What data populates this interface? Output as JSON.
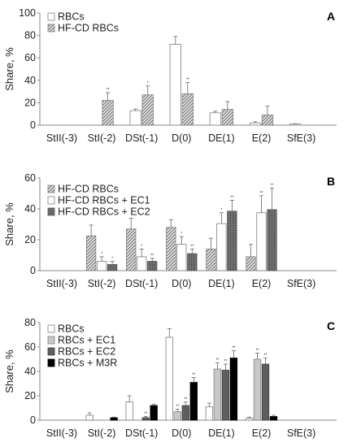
{
  "chart_data": [
    {
      "panel_label": "A",
      "type": "bar",
      "ylabel": "Share, %",
      "ylim": [
        0,
        100
      ],
      "yticks": [
        0,
        20,
        40,
        60,
        80,
        100
      ],
      "categories": [
        "StII(-3)",
        "StI(-2)",
        "DSt(-1)",
        "D(0)",
        "DE(1)",
        "E(2)",
        "SfE(3)"
      ],
      "legend_position": "top-left",
      "series": [
        {
          "name": "RBCs",
          "style": "white",
          "values": [
            0,
            0,
            13,
            72,
            11,
            2,
            1
          ],
          "errors": [
            0,
            0,
            1.5,
            7,
            1.5,
            1,
            0.3
          ],
          "stars": [
            "",
            "",
            "",
            "",
            "",
            "",
            ""
          ]
        },
        {
          "name": "HF-CD RBCs",
          "style": "hatched",
          "values": [
            0,
            22,
            27,
            28,
            14,
            9,
            0
          ],
          "errors": [
            0,
            7,
            8,
            10,
            7,
            8,
            0
          ],
          "stars": [
            "",
            "**",
            "*",
            "**",
            "",
            "",
            ""
          ]
        }
      ]
    },
    {
      "panel_label": "B",
      "type": "bar",
      "ylabel": "Share, %",
      "ylim": [
        0,
        60
      ],
      "yticks": [
        0,
        20,
        40,
        60
      ],
      "categories": [
        "StII(-3)",
        "StI(-2)",
        "DSt(-1)",
        "D(0)",
        "DE(1)",
        "E(2)",
        "SfE(3)"
      ],
      "legend_position": "top-left",
      "series": [
        {
          "name": "HF-CD RBCs",
          "style": "hatched",
          "values": [
            0,
            22.5,
            27,
            28,
            14,
            9,
            0
          ],
          "errors": [
            0,
            7,
            7,
            5,
            7,
            8,
            0
          ],
          "stars": [
            "",
            "",
            "",
            "",
            "",
            "",
            ""
          ]
        },
        {
          "name": "HF-CD RBCs + EC1",
          "style": "white",
          "values": [
            0,
            6,
            9,
            17,
            30.5,
            37.5,
            0
          ],
          "errors": [
            0,
            3,
            5,
            5,
            7,
            11,
            0
          ],
          "stars": [
            "",
            "*",
            "*",
            "*",
            "*",
            "**",
            ""
          ]
        },
        {
          "name": "HF-CD RBCs + EC2",
          "style": "gray-dotted",
          "values": [
            0,
            4,
            6,
            11,
            38.5,
            39.5,
            0
          ],
          "errors": [
            0,
            2,
            2,
            3,
            7,
            14,
            0
          ],
          "stars": [
            "",
            "*",
            "**",
            "**",
            "**",
            "**",
            ""
          ]
        }
      ]
    },
    {
      "panel_label": "C",
      "type": "bar",
      "ylabel": "Share, %",
      "ylim": [
        0,
        80
      ],
      "yticks": [
        0,
        20,
        40,
        60,
        80
      ],
      "categories": [
        "StII(-3)",
        "StI(-2)",
        "DSt(-1)",
        "D(0)",
        "DE(1)",
        "E(2)",
        "SfE(3)"
      ],
      "legend_position": "top-left",
      "series": [
        {
          "name": "RBCs",
          "style": "white",
          "values": [
            0,
            4,
            15,
            68,
            11,
            1.5,
            0
          ],
          "errors": [
            0,
            2,
            5,
            7,
            3,
            1,
            0
          ],
          "stars": [
            "",
            "",
            "",
            "",
            "",
            "",
            ""
          ]
        },
        {
          "name": "RBCs + EC1",
          "style": "light-gray",
          "values": [
            0,
            0,
            0,
            7,
            42,
            50,
            0
          ],
          "errors": [
            0,
            0,
            0,
            2,
            5,
            5,
            0
          ],
          "stars": [
            "",
            "",
            "",
            "**",
            "**",
            "**",
            ""
          ]
        },
        {
          "name": "RBCs + EC2",
          "style": "dark-gray",
          "values": [
            0,
            0,
            2,
            12,
            41,
            46,
            0
          ],
          "errors": [
            0,
            0,
            1,
            3,
            5,
            5,
            0
          ],
          "stars": [
            "",
            "",
            "**",
            "**",
            "**",
            "**",
            ""
          ]
        },
        {
          "name": "RBCs + M3R",
          "style": "black",
          "values": [
            0,
            2,
            12,
            31,
            51,
            3,
            0
          ],
          "errors": [
            0,
            0.5,
            1,
            4,
            6,
            1,
            0
          ],
          "stars": [
            "",
            "",
            "",
            "**",
            "**",
            "",
            ""
          ]
        }
      ]
    }
  ]
}
